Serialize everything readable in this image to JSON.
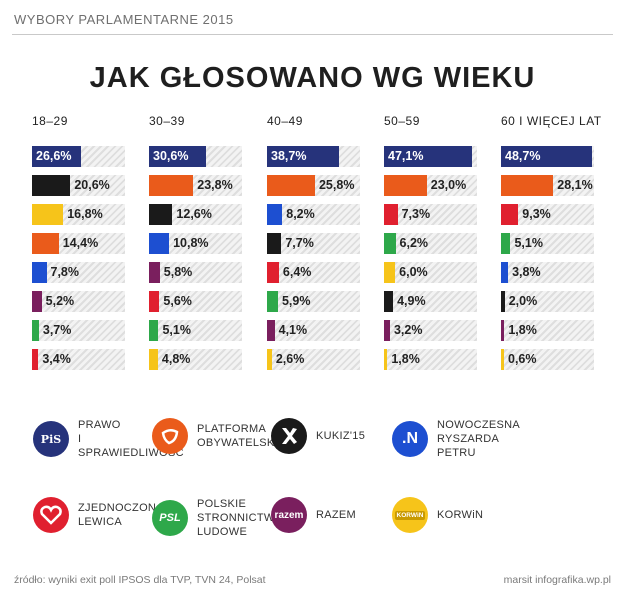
{
  "header": "WYBORY PARLAMENTARNE 2015",
  "title": "JAK GŁOSOWANO WG WIEKU",
  "chart_data": {
    "type": "bar",
    "orientation": "horizontal",
    "title": "JAK GŁOSOWANO WG WIEKU",
    "xlim": [
      0,
      50
    ],
    "groups": [
      {
        "label": "18–29",
        "bars": [
          {
            "party": "pis",
            "value": 26.6,
            "label": "26,6%"
          },
          {
            "party": "kukiz",
            "value": 20.6,
            "label": "20,6%"
          },
          {
            "party": "korwin",
            "value": 16.8,
            "label": "16,8%"
          },
          {
            "party": "po",
            "value": 14.4,
            "label": "14,4%"
          },
          {
            "party": "nowoczesna",
            "value": 7.8,
            "label": "7,8%"
          },
          {
            "party": "razem",
            "value": 5.2,
            "label": "5,2%"
          },
          {
            "party": "psl",
            "value": 3.7,
            "label": "3,7%"
          },
          {
            "party": "zl",
            "value": 3.4,
            "label": "3,4%"
          }
        ]
      },
      {
        "label": "30–39",
        "bars": [
          {
            "party": "pis",
            "value": 30.6,
            "label": "30,6%"
          },
          {
            "party": "po",
            "value": 23.8,
            "label": "23,8%"
          },
          {
            "party": "kukiz",
            "value": 12.6,
            "label": "12,6%"
          },
          {
            "party": "nowoczesna",
            "value": 10.8,
            "label": "10,8%"
          },
          {
            "party": "razem",
            "value": 5.8,
            "label": "5,8%"
          },
          {
            "party": "zl",
            "value": 5.6,
            "label": "5,6%"
          },
          {
            "party": "psl",
            "value": 5.1,
            "label": "5,1%"
          },
          {
            "party": "korwin",
            "value": 4.8,
            "label": "4,8%"
          }
        ]
      },
      {
        "label": "40–49",
        "bars": [
          {
            "party": "pis",
            "value": 38.7,
            "label": "38,7%"
          },
          {
            "party": "po",
            "value": 25.8,
            "label": "25,8%"
          },
          {
            "party": "nowoczesna",
            "value": 8.2,
            "label": "8,2%"
          },
          {
            "party": "kukiz",
            "value": 7.7,
            "label": "7,7%"
          },
          {
            "party": "zl",
            "value": 6.4,
            "label": "6,4%"
          },
          {
            "party": "psl",
            "value": 5.9,
            "label": "5,9%"
          },
          {
            "party": "razem",
            "value": 4.1,
            "label": "4,1%"
          },
          {
            "party": "korwin",
            "value": 2.6,
            "label": "2,6%"
          }
        ]
      },
      {
        "label": "50–59",
        "bars": [
          {
            "party": "pis",
            "value": 47.1,
            "label": "47,1%"
          },
          {
            "party": "po",
            "value": 23.0,
            "label": "23,0%"
          },
          {
            "party": "zl",
            "value": 7.3,
            "label": "7,3%"
          },
          {
            "party": "psl",
            "value": 6.2,
            "label": "6,2%"
          },
          {
            "party": "korwin",
            "value": 6.0,
            "label": "6,0%"
          },
          {
            "party": "kukiz",
            "value": 4.9,
            "label": "4,9%"
          },
          {
            "party": "razem",
            "value": 3.2,
            "label": "3,2%"
          },
          {
            "party": "korwin",
            "value": 1.8,
            "label": "1,8%"
          }
        ]
      },
      {
        "label": "60 I WIĘCEJ LAT",
        "bars": [
          {
            "party": "pis",
            "value": 48.7,
            "label": "48,7%"
          },
          {
            "party": "po",
            "value": 28.1,
            "label": "28,1%"
          },
          {
            "party": "zl",
            "value": 9.3,
            "label": "9,3%"
          },
          {
            "party": "psl",
            "value": 5.1,
            "label": "5,1%"
          },
          {
            "party": "nowoczesna",
            "value": 3.8,
            "label": "3,8%"
          },
          {
            "party": "kukiz",
            "value": 2.0,
            "label": "2,0%"
          },
          {
            "party": "razem",
            "value": 1.8,
            "label": "1,8%"
          },
          {
            "party": "korwin",
            "value": 0.6,
            "label": "0,6%"
          }
        ]
      }
    ]
  },
  "colors": {
    "pis": "#26337b",
    "po": "#ea5b1b",
    "kukiz": "#1a1a1a",
    "nowoczesna": "#1d4fd1",
    "zl": "#e0202f",
    "psl": "#2ea84a",
    "razem": "#7a1f5e",
    "korwin": "#f6c41a"
  },
  "legend": [
    {
      "party": "pis",
      "icon": "pis-logo-icon",
      "logo_text": "PiS",
      "lines": [
        "PRAWO",
        "I SPRAWIEDLIWOŚĆ"
      ]
    },
    {
      "party": "po",
      "icon": "po-logo-icon",
      "logo_text": "",
      "lines": [
        "PLATFORMA",
        "OBYWATELSKA"
      ]
    },
    {
      "party": "kukiz",
      "icon": "kukiz-logo-icon",
      "logo_text": "",
      "lines": [
        "KUKIZ'15"
      ]
    },
    {
      "party": "nowoczesna",
      "icon": "nowoczesna-logo-icon",
      "logo_text": ".N",
      "lines": [
        "NOWOCZESNA",
        "RYSZARDA PETRU"
      ]
    },
    {
      "party": "zl",
      "icon": "zl-heart-logo-icon",
      "logo_text": "",
      "lines": [
        "ZJEDNOCZONA",
        "LEWICA"
      ]
    },
    {
      "party": "psl",
      "icon": "psl-logo-icon",
      "logo_text": "PSL",
      "lines": [
        "POLSKIE",
        "STRONNICTWO",
        "LUDOWE"
      ]
    },
    {
      "party": "razem",
      "icon": "razem-logo-icon",
      "logo_text": "razem",
      "lines": [
        "RAZEM"
      ]
    },
    {
      "party": "korwin",
      "icon": "korwin-crown-logo-icon",
      "logo_text": "KORWiN",
      "lines": [
        "KORWiN"
      ]
    }
  ],
  "footer": {
    "source": "źródło: wyniki exit poll IPSOS dla TVP, TVN 24, Polsat",
    "credit": "marsit infografika.wp.pl"
  }
}
